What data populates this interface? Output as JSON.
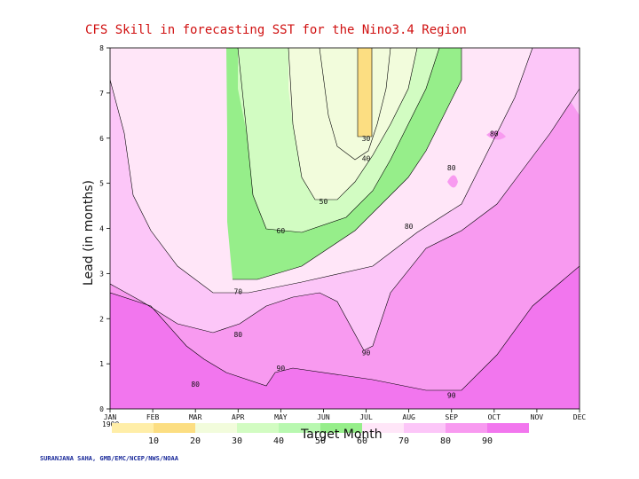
{
  "chart_data": {
    "type": "contour",
    "title": "CFS Skill in forecasting SST for the Nino3.4 Region",
    "xlabel": "Target Month",
    "ylabel": "Lead (in months)",
    "x_ticks": [
      "JAN",
      "FEB",
      "MAR",
      "APR",
      "MAY",
      "JUN",
      "JUL",
      "AUG",
      "SEP",
      "OCT",
      "NOV",
      "DEC"
    ],
    "x_tick_year": "1900",
    "y_ticks": [
      "0",
      "1",
      "2",
      "3",
      "4",
      "5",
      "6",
      "7",
      "8"
    ],
    "xlim": [
      1,
      12
    ],
    "ylim": [
      0,
      8
    ],
    "contour_levels": [
      10,
      20,
      30,
      40,
      50,
      60,
      70,
      80,
      90
    ],
    "legend": {
      "labels": [
        "10",
        "20",
        "30",
        "40",
        "50",
        "60",
        "70",
        "80",
        "90"
      ],
      "colors": [
        "#ffeea8",
        "#fcde82",
        "#f2fcdc",
        "#d2fcc2",
        "#b8f8b0",
        "#96ee8a",
        "#ffe6f8",
        "#fcc6f8",
        "#f89af0",
        "#f276ee"
      ]
    },
    "contour_labels": [
      {
        "text": "30",
        "month": 7.0,
        "lead": 6.0
      },
      {
        "text": "40",
        "month": 7.0,
        "lead": 5.55
      },
      {
        "text": "50",
        "month": 6.0,
        "lead": 4.6
      },
      {
        "text": "60",
        "month": 5.0,
        "lead": 3.95
      },
      {
        "text": "70",
        "month": 4.0,
        "lead": 2.6
      },
      {
        "text": "80",
        "month": 4.0,
        "lead": 1.65
      },
      {
        "text": "90",
        "month": 5.0,
        "lead": 0.9
      },
      {
        "text": "80",
        "month": 3.0,
        "lead": 0.55
      },
      {
        "text": "90",
        "month": 9.0,
        "lead": 0.3
      },
      {
        "text": "90",
        "month": 7.0,
        "lead": 1.25
      },
      {
        "text": "80",
        "month": 8.0,
        "lead": 4.05
      },
      {
        "text": "80",
        "month": 9.0,
        "lead": 5.35
      },
      {
        "text": "80",
        "month": 10.0,
        "lead": 6.1
      }
    ]
  },
  "credit": "SURANJANA SAHA, GMB/EMC/NCEP/NWS/NOAA"
}
